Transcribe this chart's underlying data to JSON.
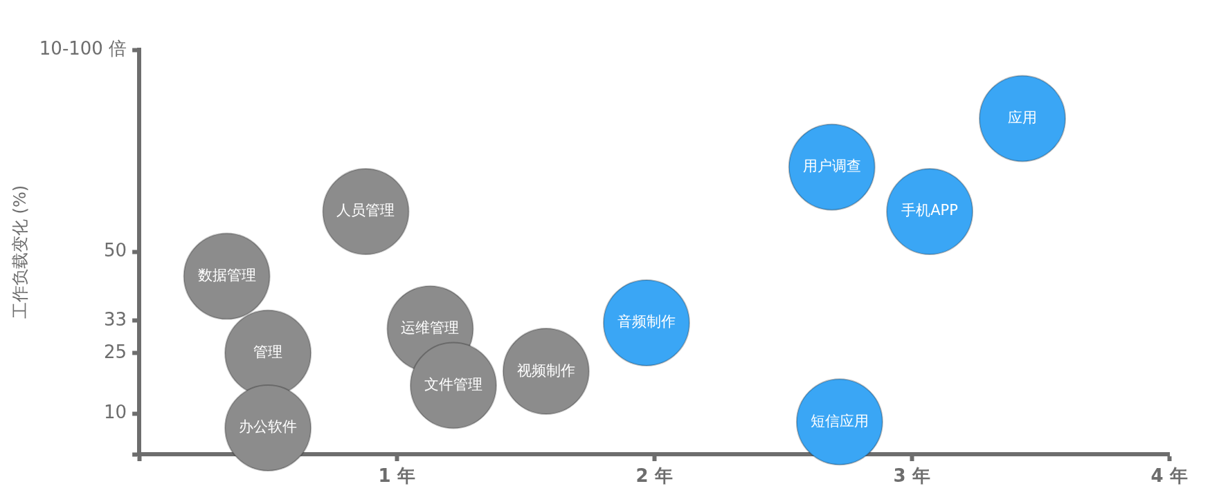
{
  "chart_data": {
    "type": "bubble",
    "ylabel": "工作负载变化 (%)",
    "xlim": [
      0,
      4
    ],
    "xticks": [
      {
        "value": 0,
        "label": null
      },
      {
        "value": 1,
        "label": "1 年"
      },
      {
        "value": 2,
        "label": "2 年"
      },
      {
        "value": 3,
        "label": "3 年"
      },
      {
        "value": 4,
        "label": "4 年"
      }
    ],
    "ylim": [
      0,
      100
    ],
    "yticks": [
      {
        "value": 0,
        "label": null
      },
      10,
      25,
      33,
      50,
      {
        "value": 100,
        "label": "10-100 倍"
      }
    ],
    "grid": false,
    "legend": false,
    "series": [
      {
        "color": "#8c8c8c",
        "x": [
          0.88,
          0.34,
          1.13,
          0.5,
          1.22,
          1.58,
          0.5
        ],
        "values": [
          60,
          44,
          31,
          25,
          17,
          20.5,
          6.5
        ],
        "sizes": [
          1,
          1,
          1,
          1,
          1,
          1,
          1
        ]
      },
      {
        "color": "#3aa6f5",
        "x": [
          1.97,
          2.69,
          3.07,
          3.43,
          2.72
        ],
        "values": [
          32.5,
          71,
          60,
          83,
          8
        ],
        "sizes": [
          1,
          1,
          1,
          1,
          1
        ]
      }
    ],
    "annotations": [
      {
        "text": "人员管理",
        "x": 0.88,
        "y": 60
      },
      {
        "text": "数据管理",
        "x": 0.34,
        "y": 44
      },
      {
        "text": "运维管理",
        "x": 1.13,
        "y": 31
      },
      {
        "text": "管理",
        "x": 0.5,
        "y": 25
      },
      {
        "text": "文件管理",
        "x": 1.22,
        "y": 17
      },
      {
        "text": "视频制作",
        "x": 1.58,
        "y": 20.5
      },
      {
        "text": "办公软件",
        "x": 0.5,
        "y": 6.5
      },
      {
        "text": "音频制作",
        "x": 1.97,
        "y": 32.5
      },
      {
        "text": "用户调查",
        "x": 2.69,
        "y": 71
      },
      {
        "text": "手机APP",
        "x": 3.07,
        "y": 60
      },
      {
        "text": "应用",
        "x": 3.43,
        "y": 83
      },
      {
        "text": "短信应用",
        "x": 2.72,
        "y": 8
      }
    ]
  }
}
